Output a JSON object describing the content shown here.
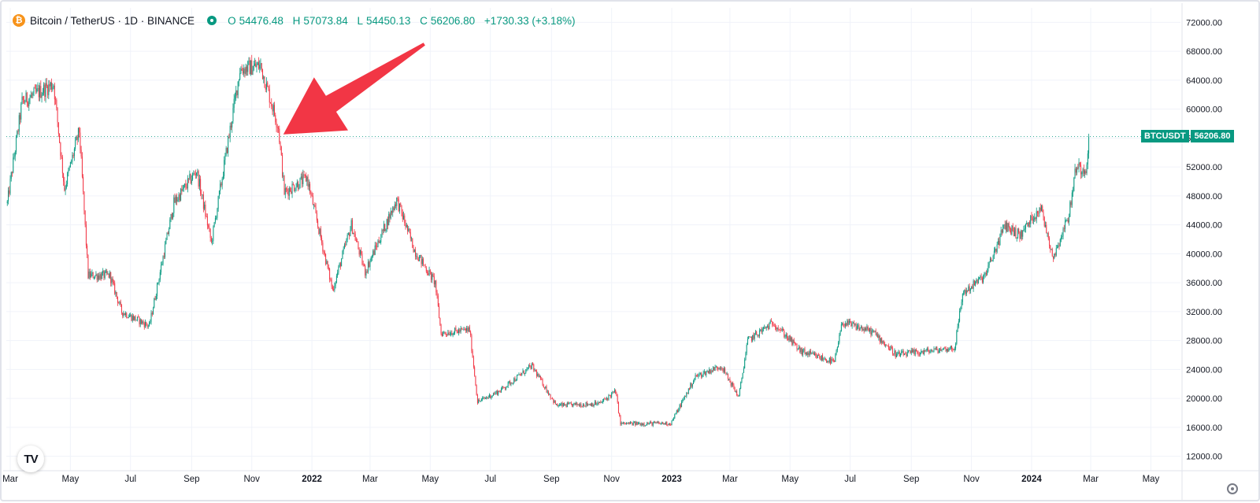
{
  "header": {
    "symbol_icon": "bitcoin-icon",
    "title": "Bitcoin / TetherUS · 1D · BINANCE",
    "open_label": "O",
    "open": "54476.48",
    "high_label": "H",
    "high": "57073.84",
    "low_label": "L",
    "low": "54450.13",
    "close_label": "C",
    "close": "56206.80",
    "change": "+1730.33 (+3.18%)"
  },
  "price_tag": {
    "symbol": "BTCUSDT",
    "value": "56206.80"
  },
  "logo": {
    "text": "TV"
  },
  "colors": {
    "up": "#089981",
    "down": "#f23645",
    "arrow": "#f23645",
    "grid": "#f0f3fa",
    "axis_text": "#131722"
  },
  "chart_data": {
    "type": "candlestick",
    "title": "Bitcoin / TetherUS · 1D · BINANCE",
    "ylim": [
      10000,
      74000
    ],
    "y_ticks": [
      12000,
      16000,
      20000,
      24000,
      28000,
      32000,
      36000,
      40000,
      44000,
      48000,
      52000,
      56000,
      60000,
      64000,
      68000,
      72000
    ],
    "y_tick_labels": [
      "12000.00",
      "16000.00",
      "20000.00",
      "24000.00",
      "28000.00",
      "32000.00",
      "36000.00",
      "40000.00",
      "44000.00",
      "48000.00",
      "52000.00",
      "56000.00",
      "60000.00",
      "64000.00",
      "68000.00",
      "72000.00"
    ],
    "x_range": [
      "2021-02-25",
      "2024-05-31"
    ],
    "x_ticks": [
      {
        "date": "2021-03-01",
        "label": "Mar"
      },
      {
        "date": "2021-05-01",
        "label": "May"
      },
      {
        "date": "2021-07-01",
        "label": "Jul"
      },
      {
        "date": "2021-09-01",
        "label": "Sep"
      },
      {
        "date": "2021-11-01",
        "label": "Nov"
      },
      {
        "date": "2022-01-01",
        "label": "2022",
        "bold": true
      },
      {
        "date": "2022-03-01",
        "label": "Mar"
      },
      {
        "date": "2022-05-01",
        "label": "May"
      },
      {
        "date": "2022-07-01",
        "label": "Jul"
      },
      {
        "date": "2022-09-01",
        "label": "Sep"
      },
      {
        "date": "2022-11-01",
        "label": "Nov"
      },
      {
        "date": "2023-01-01",
        "label": "2023",
        "bold": true
      },
      {
        "date": "2023-03-01",
        "label": "Mar"
      },
      {
        "date": "2023-05-01",
        "label": "May"
      },
      {
        "date": "2023-07-01",
        "label": "Jul"
      },
      {
        "date": "2023-09-01",
        "label": "Sep"
      },
      {
        "date": "2023-11-01",
        "label": "Nov"
      },
      {
        "date": "2024-01-01",
        "label": "2024",
        "bold": true
      },
      {
        "date": "2024-03-01",
        "label": "Mar"
      },
      {
        "date": "2024-05-01",
        "label": "May"
      }
    ],
    "last_price": 56206.8,
    "series": [
      {
        "name": "BTCUSDT",
        "closes": [
          {
            "date": "2021-02-26",
            "close": 47000
          },
          {
            "date": "2021-03-13",
            "close": 61000
          },
          {
            "date": "2021-04-14",
            "close": 63500
          },
          {
            "date": "2021-04-25",
            "close": 49000
          },
          {
            "date": "2021-05-10",
            "close": 57000
          },
          {
            "date": "2021-05-19",
            "close": 37000
          },
          {
            "date": "2021-06-10",
            "close": 37000
          },
          {
            "date": "2021-06-22",
            "close": 32000
          },
          {
            "date": "2021-07-20",
            "close": 30000
          },
          {
            "date": "2021-08-14",
            "close": 47000
          },
          {
            "date": "2021-09-06",
            "close": 51500
          },
          {
            "date": "2021-09-21",
            "close": 41500
          },
          {
            "date": "2021-10-20",
            "close": 65500
          },
          {
            "date": "2021-11-10",
            "close": 66000
          },
          {
            "date": "2021-11-28",
            "close": 57500
          },
          {
            "date": "2021-12-04",
            "close": 48500
          },
          {
            "date": "2021-12-27",
            "close": 50500
          },
          {
            "date": "2022-01-22",
            "close": 35000
          },
          {
            "date": "2022-02-10",
            "close": 44000
          },
          {
            "date": "2022-02-24",
            "close": 37500
          },
          {
            "date": "2022-03-28",
            "close": 47500
          },
          {
            "date": "2022-04-15",
            "close": 40500
          },
          {
            "date": "2022-05-06",
            "close": 36000
          },
          {
            "date": "2022-05-12",
            "close": 29000
          },
          {
            "date": "2022-06-10",
            "close": 29500
          },
          {
            "date": "2022-06-18",
            "close": 19500
          },
          {
            "date": "2022-07-10",
            "close": 21000
          },
          {
            "date": "2022-08-12",
            "close": 24500
          },
          {
            "date": "2022-09-06",
            "close": 19000
          },
          {
            "date": "2022-10-20",
            "close": 19300
          },
          {
            "date": "2022-11-05",
            "close": 21000
          },
          {
            "date": "2022-11-10",
            "close": 16500
          },
          {
            "date": "2022-12-31",
            "close": 16550
          },
          {
            "date": "2023-01-25",
            "close": 23000
          },
          {
            "date": "2023-02-20",
            "close": 24500
          },
          {
            "date": "2023-03-10",
            "close": 20200
          },
          {
            "date": "2023-03-19",
            "close": 28000
          },
          {
            "date": "2023-04-14",
            "close": 30500
          },
          {
            "date": "2023-05-12",
            "close": 26500
          },
          {
            "date": "2023-06-15",
            "close": 25000
          },
          {
            "date": "2023-06-23",
            "close": 30500
          },
          {
            "date": "2023-07-24",
            "close": 29200
          },
          {
            "date": "2023-08-17",
            "close": 26000
          },
          {
            "date": "2023-10-15",
            "close": 27000
          },
          {
            "date": "2023-10-23",
            "close": 34500
          },
          {
            "date": "2023-11-15",
            "close": 37000
          },
          {
            "date": "2023-12-05",
            "close": 44000
          },
          {
            "date": "2023-12-20",
            "close": 42500
          },
          {
            "date": "2024-01-10",
            "close": 46500
          },
          {
            "date": "2024-01-23",
            "close": 39500
          },
          {
            "date": "2024-02-08",
            "close": 45500
          },
          {
            "date": "2024-02-15",
            "close": 52000
          },
          {
            "date": "2024-02-25",
            "close": 51700
          },
          {
            "date": "2024-02-28",
            "close": 56206.8
          }
        ]
      }
    ],
    "annotation": {
      "type": "arrow",
      "from_date": "2022-04-25",
      "from_price": 69000,
      "to_date": "2021-12-03",
      "to_price": 56500
    }
  }
}
